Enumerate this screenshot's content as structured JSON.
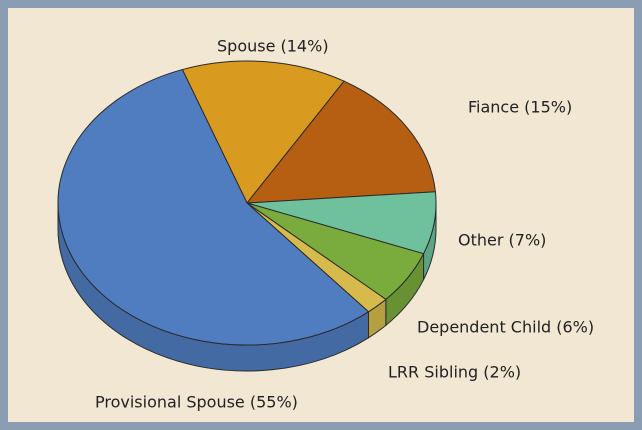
{
  "chart_data": {
    "type": "pie3d",
    "categories": [
      "Spouse (14%)",
      "Fiance (15%)",
      "Other (7%)",
      "Dependent Child (6%)",
      "LRR Sibling (2%)",
      "Provisional Spouse (55%)"
    ],
    "values": [
      14,
      15,
      7,
      6,
      2,
      55
    ],
    "colors": [
      "#d99b1f",
      "#b65f13",
      "#6fc09d",
      "#7aab3d",
      "#d6bb4c",
      "#4f7dc0"
    ]
  }
}
